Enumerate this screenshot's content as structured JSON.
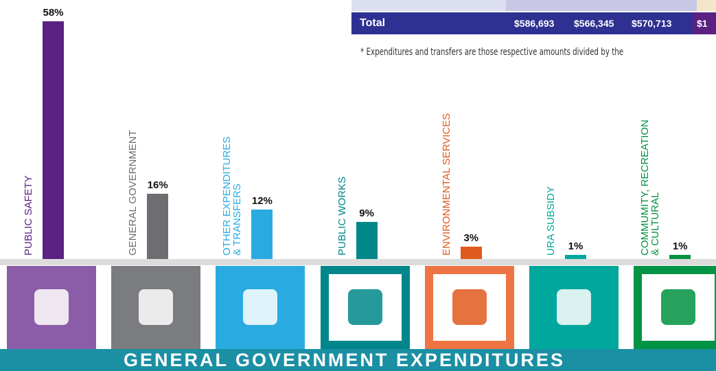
{
  "chart_data": {
    "type": "bar",
    "title": "GENERAL GOVERNMENT EXPENDITURES",
    "categories": [
      "PUBLIC SAFETY",
      "GENERAL GOVERNMENT",
      "OTHER EXPENDITURES\n& TRANSFERS",
      "PUBLIC WORKS",
      "ENVIRONMENTAL SERVICES",
      "URA SUBSIDY",
      "COMMUMITY, RECREATION\n& CULTURAL"
    ],
    "values": [
      58,
      16,
      12,
      9,
      3,
      1,
      1
    ],
    "value_labels": [
      "58%",
      "16%",
      "12%",
      "9%",
      "3%",
      "1%",
      "1%"
    ],
    "colors": [
      "#5b2182",
      "#6d6e71",
      "#29abe2",
      "#00878a",
      "#e05a1e",
      "#00a79d",
      "#00923f"
    ]
  },
  "table": {
    "total_row": [
      "Total",
      "$586,693",
      "$566,345",
      "$570,713",
      "$1"
    ]
  },
  "footnote": "* Expenditures and transfers are those respective amounts divided by the"
}
